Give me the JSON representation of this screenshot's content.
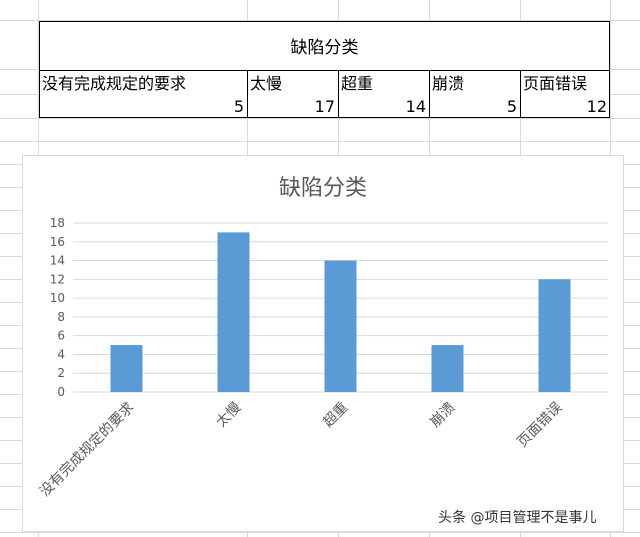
{
  "table": {
    "title": "缺陷分类",
    "headers": [
      "没有完成规定的要求",
      "太慢",
      "超重",
      "崩溃",
      "页面错误"
    ],
    "values": [
      "5",
      "17",
      "14",
      "5",
      "12"
    ]
  },
  "chart_data": {
    "type": "bar",
    "title": "缺陷分类",
    "categories": [
      "没有完成规定的要求",
      "太慢",
      "超重",
      "崩溃",
      "页面错误"
    ],
    "values": [
      5,
      17,
      14,
      5,
      12
    ],
    "ylim": [
      0,
      18
    ],
    "yticks": [
      "0",
      "2",
      "4",
      "6",
      "8",
      "10",
      "12",
      "14",
      "16",
      "18"
    ],
    "grid": true,
    "bar_color": "#5b9bd5"
  },
  "watermark": "头条 @项目管理不是事儿"
}
